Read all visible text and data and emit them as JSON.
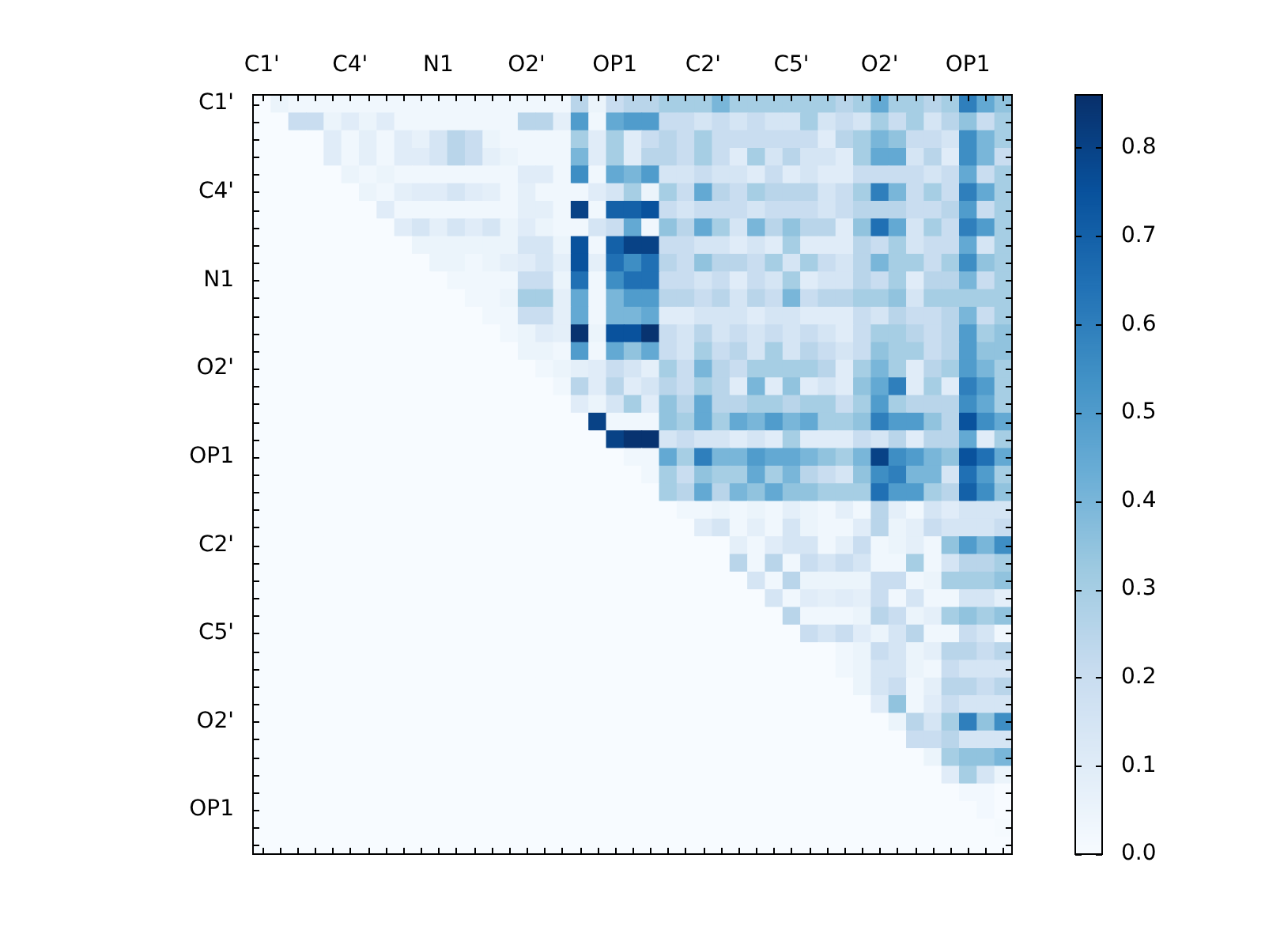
{
  "chart_data": {
    "type": "heatmap",
    "categories": [
      "C1'",
      null,
      null,
      null,
      null,
      "C4'",
      null,
      null,
      null,
      null,
      "N1",
      null,
      null,
      null,
      null,
      "O2'",
      null,
      null,
      null,
      null,
      "OP1",
      null,
      null,
      null,
      null,
      "C2'",
      null,
      null,
      null,
      null,
      "C5'",
      null,
      null,
      null,
      null,
      "O2'",
      null,
      null,
      null,
      null,
      "OP1",
      null,
      null
    ],
    "y_categories": [
      "C1'",
      null,
      null,
      null,
      null,
      "C4'",
      null,
      null,
      null,
      null,
      "N1",
      null,
      null,
      null,
      null,
      "O2'",
      null,
      null,
      null,
      null,
      "OP1",
      null,
      null,
      null,
      null,
      "C2'",
      null,
      null,
      null,
      null,
      "C5'",
      null,
      null,
      null,
      null,
      "O2'",
      null,
      null,
      null,
      null,
      "OP1",
      null,
      null
    ],
    "cells": [
      [
        0,
        0.05,
        0.03,
        0.03,
        0.03,
        0.03,
        0.03,
        0.03,
        0.03,
        0.03,
        0.03,
        0.03,
        0.03,
        0.03,
        0.03,
        0.03,
        0.03,
        0.03,
        0.25,
        0.05,
        0.2,
        0.25,
        0.25,
        0.3,
        0.3,
        0.3,
        0.4,
        0.3,
        0.3,
        0.3,
        0.3,
        0.3,
        0.3,
        0.25,
        0.3,
        0.45,
        0.3,
        0.3,
        0.25,
        0.3,
        0.6,
        0.45,
        0.35
      ],
      [
        0,
        0,
        0.2,
        0.2,
        0.05,
        0.1,
        0.05,
        0.1,
        0.03,
        0.03,
        0.03,
        0.03,
        0.03,
        0.03,
        0.03,
        0.25,
        0.25,
        0.08,
        0.5,
        0.03,
        0.45,
        0.5,
        0.5,
        0.2,
        0.2,
        0.15,
        0.2,
        0.15,
        0.2,
        0.15,
        0.15,
        0.3,
        0.15,
        0.2,
        0.15,
        0.3,
        0.2,
        0.3,
        0.15,
        0.25,
        0.35,
        0.2,
        0.3
      ],
      [
        0,
        0,
        0,
        0,
        0.1,
        0.03,
        0.08,
        0.03,
        0.1,
        0.07,
        0.15,
        0.25,
        0.2,
        0.05,
        0.03,
        0.03,
        0.03,
        0.03,
        0.3,
        0.1,
        0.3,
        0.1,
        0.2,
        0.25,
        0.2,
        0.3,
        0.2,
        0.2,
        0.2,
        0.2,
        0.2,
        0.2,
        0.1,
        0.25,
        0.3,
        0.4,
        0.35,
        0.2,
        0.2,
        0.15,
        0.55,
        0.4,
        0.3
      ],
      [
        0,
        0,
        0,
        0,
        0.1,
        0.03,
        0.08,
        0.03,
        0.1,
        0.1,
        0.15,
        0.25,
        0.2,
        0.08,
        0.05,
        0.03,
        0.03,
        0.03,
        0.4,
        0.1,
        0.3,
        0.1,
        0.25,
        0.25,
        0.2,
        0.3,
        0.2,
        0.1,
        0.3,
        0.15,
        0.25,
        0.15,
        0.15,
        0.1,
        0.3,
        0.45,
        0.45,
        0.15,
        0.25,
        0.1,
        0.55,
        0.4,
        0.2
      ],
      [
        0,
        0,
        0,
        0,
        0,
        0.05,
        0.03,
        0.05,
        0.03,
        0.03,
        0.03,
        0.03,
        0.03,
        0.03,
        0.03,
        0.1,
        0.1,
        0.03,
        0.55,
        0.03,
        0.45,
        0.4,
        0.5,
        0.15,
        0.15,
        0.2,
        0.15,
        0.15,
        0.1,
        0.2,
        0.1,
        0.15,
        0.1,
        0.1,
        0.2,
        0.2,
        0.2,
        0.2,
        0.15,
        0.2,
        0.45,
        0.2,
        0.3
      ],
      [
        0,
        0,
        0,
        0,
        0,
        0,
        0.05,
        0.03,
        0.08,
        0.1,
        0.1,
        0.15,
        0.1,
        0.08,
        0.03,
        0.08,
        0.03,
        0.03,
        0.03,
        0.1,
        0.15,
        0.3,
        0.05,
        0.3,
        0.2,
        0.45,
        0.25,
        0.2,
        0.3,
        0.25,
        0.25,
        0.25,
        0.15,
        0.2,
        0.3,
        0.6,
        0.4,
        0.2,
        0.3,
        0.2,
        0.6,
        0.45,
        0.3
      ],
      [
        0,
        0,
        0,
        0,
        0,
        0,
        0,
        0.1,
        0.03,
        0.03,
        0.03,
        0.03,
        0.03,
        0.03,
        0.03,
        0.08,
        0.08,
        0.03,
        0.8,
        0.03,
        0.7,
        0.7,
        0.75,
        0.2,
        0.15,
        0.2,
        0.2,
        0.2,
        0.15,
        0.2,
        0.2,
        0.2,
        0.15,
        0.2,
        0.25,
        0.25,
        0.25,
        0.2,
        0.2,
        0.25,
        0.5,
        0.2,
        0.3
      ],
      [
        0,
        0,
        0,
        0,
        0,
        0,
        0,
        0,
        0.1,
        0.15,
        0.08,
        0.15,
        0.1,
        0.15,
        0.05,
        0.1,
        0.05,
        0.03,
        0.03,
        0.15,
        0.2,
        0.45,
        0.03,
        0.35,
        0.25,
        0.45,
        0.3,
        0.15,
        0.4,
        0.25,
        0.35,
        0.25,
        0.25,
        0.1,
        0.35,
        0.65,
        0.45,
        0.15,
        0.3,
        0.2,
        0.6,
        0.5,
        0.3
      ],
      [
        0,
        0,
        0,
        0,
        0,
        0,
        0,
        0,
        0,
        0.05,
        0.05,
        0.05,
        0.05,
        0.05,
        0.05,
        0.15,
        0.15,
        0.05,
        0.75,
        0.03,
        0.7,
        0.8,
        0.8,
        0.2,
        0.2,
        0.15,
        0.15,
        0.1,
        0.15,
        0.1,
        0.3,
        0.1,
        0.1,
        0.1,
        0.25,
        0.2,
        0.3,
        0.15,
        0.2,
        0.2,
        0.45,
        0.15,
        0.3
      ],
      [
        0,
        0,
        0,
        0,
        0,
        0,
        0,
        0,
        0,
        0,
        0.05,
        0.05,
        0.03,
        0.05,
        0.08,
        0.1,
        0.15,
        0.08,
        0.75,
        0.08,
        0.65,
        0.55,
        0.65,
        0.25,
        0.2,
        0.35,
        0.25,
        0.25,
        0.2,
        0.3,
        0.15,
        0.3,
        0.2,
        0.15,
        0.25,
        0.4,
        0.3,
        0.3,
        0.2,
        0.3,
        0.55,
        0.35,
        0.3
      ],
      [
        0,
        0,
        0,
        0,
        0,
        0,
        0,
        0,
        0,
        0,
        0,
        0.03,
        0.03,
        0.03,
        0.03,
        0.2,
        0.2,
        0.05,
        0.65,
        0.03,
        0.55,
        0.65,
        0.65,
        0.2,
        0.2,
        0.15,
        0.2,
        0.1,
        0.2,
        0.15,
        0.3,
        0.1,
        0.15,
        0.15,
        0.25,
        0.2,
        0.3,
        0.1,
        0.25,
        0.25,
        0.4,
        0.2,
        0.3
      ],
      [
        0,
        0,
        0,
        0,
        0,
        0,
        0,
        0,
        0,
        0,
        0,
        0,
        0.03,
        0.03,
        0.05,
        0.3,
        0.3,
        0.08,
        0.45,
        0.03,
        0.4,
        0.5,
        0.5,
        0.25,
        0.25,
        0.2,
        0.25,
        0.15,
        0.25,
        0.2,
        0.4,
        0.2,
        0.25,
        0.25,
        0.3,
        0.3,
        0.35,
        0.15,
        0.3,
        0.3,
        0.3,
        0.3,
        0.3
      ],
      [
        0,
        0,
        0,
        0,
        0,
        0,
        0,
        0,
        0,
        0,
        0,
        0,
        0,
        0.03,
        0.03,
        0.2,
        0.2,
        0.08,
        0.45,
        0.03,
        0.4,
        0.4,
        0.45,
        0.1,
        0.1,
        0.15,
        0.15,
        0.15,
        0.1,
        0.15,
        0.15,
        0.1,
        0.1,
        0.1,
        0.2,
        0.15,
        0.25,
        0.2,
        0.2,
        0.25,
        0.4,
        0.2,
        0.3
      ],
      [
        0,
        0,
        0,
        0,
        0,
        0,
        0,
        0,
        0,
        0,
        0,
        0,
        0,
        0,
        0.03,
        0.05,
        0.1,
        0.08,
        0.85,
        0.05,
        0.75,
        0.75,
        0.85,
        0.2,
        0.15,
        0.25,
        0.15,
        0.2,
        0.15,
        0.2,
        0.15,
        0.2,
        0.15,
        0.1,
        0.2,
        0.3,
        0.3,
        0.25,
        0.2,
        0.25,
        0.5,
        0.3,
        0.35
      ],
      [
        0,
        0,
        0,
        0,
        0,
        0,
        0,
        0,
        0,
        0,
        0,
        0,
        0,
        0,
        0,
        0.05,
        0.05,
        0.03,
        0.5,
        0.03,
        0.45,
        0.35,
        0.45,
        0.2,
        0.15,
        0.3,
        0.2,
        0.25,
        0.15,
        0.3,
        0.15,
        0.25,
        0.2,
        0.15,
        0.2,
        0.35,
        0.3,
        0.3,
        0.2,
        0.25,
        0.5,
        0.35,
        0.35
      ],
      [
        0,
        0,
        0,
        0,
        0,
        0,
        0,
        0,
        0,
        0,
        0,
        0,
        0,
        0,
        0,
        0,
        0.03,
        0.05,
        0.08,
        0.1,
        0.2,
        0.15,
        0.08,
        0.3,
        0.2,
        0.4,
        0.25,
        0.2,
        0.3,
        0.3,
        0.3,
        0.3,
        0.25,
        0.1,
        0.3,
        0.4,
        0.3,
        0.1,
        0.25,
        0.3,
        0.5,
        0.4,
        0.3
      ],
      [
        0,
        0,
        0,
        0,
        0,
        0,
        0,
        0,
        0,
        0,
        0,
        0,
        0,
        0,
        0,
        0,
        0,
        0.03,
        0.25,
        0.1,
        0.25,
        0.1,
        0.15,
        0.25,
        0.2,
        0.3,
        0.25,
        0.1,
        0.4,
        0.1,
        0.35,
        0.1,
        0.15,
        0.1,
        0.35,
        0.45,
        0.6,
        0.1,
        0.3,
        0.1,
        0.6,
        0.5,
        0.3
      ],
      [
        0,
        0,
        0,
        0,
        0,
        0,
        0,
        0,
        0,
        0,
        0,
        0,
        0,
        0,
        0,
        0,
        0,
        0,
        0.1,
        0.05,
        0.15,
        0.3,
        0.1,
        0.35,
        0.25,
        0.45,
        0.25,
        0.25,
        0.3,
        0.3,
        0.25,
        0.3,
        0.3,
        0.2,
        0.3,
        0.5,
        0.3,
        0.25,
        0.25,
        0.25,
        0.55,
        0.45,
        0.3
      ],
      [
        0,
        0,
        0,
        0,
        0,
        0,
        0,
        0,
        0,
        0,
        0,
        0,
        0,
        0,
        0,
        0,
        0,
        0,
        0,
        0.8,
        0.03,
        0.03,
        0.03,
        0.35,
        0.3,
        0.45,
        0.3,
        0.45,
        0.4,
        0.5,
        0.4,
        0.45,
        0.3,
        0.3,
        0.35,
        0.6,
        0.5,
        0.5,
        0.35,
        0.25,
        0.75,
        0.55,
        0.45
      ],
      [
        0,
        0,
        0,
        0,
        0,
        0,
        0,
        0,
        0,
        0,
        0,
        0,
        0,
        0,
        0,
        0,
        0,
        0,
        0,
        0,
        0.8,
        0.85,
        0.85,
        0.15,
        0.2,
        0.15,
        0.15,
        0.1,
        0.15,
        0.1,
        0.3,
        0.1,
        0.1,
        0.1,
        0.2,
        0.15,
        0.25,
        0.1,
        0.25,
        0.25,
        0.45,
        0.1,
        0.3
      ],
      [
        0,
        0,
        0,
        0,
        0,
        0,
        0,
        0,
        0,
        0,
        0,
        0,
        0,
        0,
        0,
        0,
        0,
        0,
        0,
        0,
        0,
        0.03,
        0.03,
        0.45,
        0.3,
        0.6,
        0.4,
        0.4,
        0.5,
        0.45,
        0.45,
        0.4,
        0.35,
        0.3,
        0.4,
        0.8,
        0.55,
        0.5,
        0.4,
        0.35,
        0.75,
        0.65,
        0.45
      ],
      [
        0,
        0,
        0,
        0,
        0,
        0,
        0,
        0,
        0,
        0,
        0,
        0,
        0,
        0,
        0,
        0,
        0,
        0,
        0,
        0,
        0,
        0,
        0.03,
        0.3,
        0.2,
        0.35,
        0.3,
        0.3,
        0.45,
        0.3,
        0.4,
        0.25,
        0.2,
        0.15,
        0.35,
        0.55,
        0.6,
        0.4,
        0.4,
        0.15,
        0.65,
        0.5,
        0.3
      ],
      [
        0,
        0,
        0,
        0,
        0,
        0,
        0,
        0,
        0,
        0,
        0,
        0,
        0,
        0,
        0,
        0,
        0,
        0,
        0,
        0,
        0,
        0,
        0,
        0.3,
        0.25,
        0.45,
        0.25,
        0.4,
        0.35,
        0.45,
        0.35,
        0.35,
        0.3,
        0.3,
        0.3,
        0.65,
        0.5,
        0.5,
        0.3,
        0.25,
        0.7,
        0.55,
        0.35
      ],
      [
        0,
        0,
        0,
        0,
        0,
        0,
        0,
        0,
        0,
        0,
        0,
        0,
        0,
        0,
        0,
        0,
        0,
        0,
        0,
        0,
        0,
        0,
        0,
        0,
        0.03,
        0.03,
        0.05,
        0.03,
        0.05,
        0.03,
        0.08,
        0.05,
        0.03,
        0.08,
        0.03,
        0.25,
        0.08,
        0.03,
        0.15,
        0.1,
        0.15,
        0.15,
        0.15
      ],
      [
        0,
        0,
        0,
        0,
        0,
        0,
        0,
        0,
        0,
        0,
        0,
        0,
        0,
        0,
        0,
        0,
        0,
        0,
        0,
        0,
        0,
        0,
        0,
        0,
        0,
        0.1,
        0.15,
        0.03,
        0.08,
        0.03,
        0.15,
        0.05,
        0.03,
        0.03,
        0.1,
        0.25,
        0.05,
        0.08,
        0.2,
        0.15,
        0.15,
        0.15,
        0.2
      ],
      [
        0,
        0,
        0,
        0,
        0,
        0,
        0,
        0,
        0,
        0,
        0,
        0,
        0,
        0,
        0,
        0,
        0,
        0,
        0,
        0,
        0,
        0,
        0,
        0,
        0,
        0,
        0,
        0.08,
        0.03,
        0.1,
        0.15,
        0.15,
        0.03,
        0.08,
        0.2,
        0.03,
        0.05,
        0.08,
        0.03,
        0.35,
        0.5,
        0.4,
        0.55
      ],
      [
        0,
        0,
        0,
        0,
        0,
        0,
        0,
        0,
        0,
        0,
        0,
        0,
        0,
        0,
        0,
        0,
        0,
        0,
        0,
        0,
        0,
        0,
        0,
        0,
        0,
        0,
        0,
        0.25,
        0.03,
        0.25,
        0.03,
        0.2,
        0.15,
        0.2,
        0.15,
        0.03,
        0.03,
        0.3,
        0.03,
        0.15,
        0.25,
        0.25,
        0.3
      ],
      [
        0,
        0,
        0,
        0,
        0,
        0,
        0,
        0,
        0,
        0,
        0,
        0,
        0,
        0,
        0,
        0,
        0,
        0,
        0,
        0,
        0,
        0,
        0,
        0,
        0,
        0,
        0,
        0,
        0.15,
        0.03,
        0.25,
        0.05,
        0.05,
        0.05,
        0.05,
        0.2,
        0.2,
        0.03,
        0.05,
        0.3,
        0.3,
        0.3,
        0.35
      ],
      [
        0,
        0,
        0,
        0,
        0,
        0,
        0,
        0,
        0,
        0,
        0,
        0,
        0,
        0,
        0,
        0,
        0,
        0,
        0,
        0,
        0,
        0,
        0,
        0,
        0,
        0,
        0,
        0,
        0,
        0.15,
        0.03,
        0.1,
        0.08,
        0.1,
        0.08,
        0.2,
        0.03,
        0.15,
        0.03,
        0.03,
        0.15,
        0.15,
        0.08
      ],
      [
        0,
        0,
        0,
        0,
        0,
        0,
        0,
        0,
        0,
        0,
        0,
        0,
        0,
        0,
        0,
        0,
        0,
        0,
        0,
        0,
        0,
        0,
        0,
        0,
        0,
        0,
        0,
        0,
        0,
        0,
        0.25,
        0.03,
        0.03,
        0.03,
        0.05,
        0.25,
        0.2,
        0.05,
        0.08,
        0.3,
        0.35,
        0.3,
        0.35
      ],
      [
        0,
        0,
        0,
        0,
        0,
        0,
        0,
        0,
        0,
        0,
        0,
        0,
        0,
        0,
        0,
        0,
        0,
        0,
        0,
        0,
        0,
        0,
        0,
        0,
        0,
        0,
        0,
        0,
        0,
        0,
        0,
        0.2,
        0.15,
        0.2,
        0.1,
        0.05,
        0.15,
        0.25,
        0.03,
        0.03,
        0.2,
        0.15,
        0.03
      ],
      [
        0,
        0,
        0,
        0,
        0,
        0,
        0,
        0,
        0,
        0,
        0,
        0,
        0,
        0,
        0,
        0,
        0,
        0,
        0,
        0,
        0,
        0,
        0,
        0,
        0,
        0,
        0,
        0,
        0,
        0,
        0,
        0,
        0,
        0.03,
        0.05,
        0.2,
        0.15,
        0.05,
        0.08,
        0.25,
        0.25,
        0.2,
        0.25
      ],
      [
        0,
        0,
        0,
        0,
        0,
        0,
        0,
        0,
        0,
        0,
        0,
        0,
        0,
        0,
        0,
        0,
        0,
        0,
        0,
        0,
        0,
        0,
        0,
        0,
        0,
        0,
        0,
        0,
        0,
        0,
        0,
        0,
        0,
        0.03,
        0.05,
        0.15,
        0.15,
        0.05,
        0.03,
        0.2,
        0.15,
        0.15,
        0.15
      ],
      [
        0,
        0,
        0,
        0,
        0,
        0,
        0,
        0,
        0,
        0,
        0,
        0,
        0,
        0,
        0,
        0,
        0,
        0,
        0,
        0,
        0,
        0,
        0,
        0,
        0,
        0,
        0,
        0,
        0,
        0,
        0,
        0,
        0,
        0,
        0.05,
        0.15,
        0.2,
        0.03,
        0.08,
        0.25,
        0.25,
        0.2,
        0.25
      ],
      [
        0,
        0,
        0,
        0,
        0,
        0,
        0,
        0,
        0,
        0,
        0,
        0,
        0,
        0,
        0,
        0,
        0,
        0,
        0,
        0,
        0,
        0,
        0,
        0,
        0,
        0,
        0,
        0,
        0,
        0,
        0,
        0,
        0,
        0,
        0,
        0.1,
        0.35,
        0.03,
        0.1,
        0.2,
        0.15,
        0.15,
        0.15
      ],
      [
        0,
        0,
        0,
        0,
        0,
        0,
        0,
        0,
        0,
        0,
        0,
        0,
        0,
        0,
        0,
        0,
        0,
        0,
        0,
        0,
        0,
        0,
        0,
        0,
        0,
        0,
        0,
        0,
        0,
        0,
        0,
        0,
        0,
        0,
        0,
        0,
        0.05,
        0.25,
        0.15,
        0.3,
        0.6,
        0.35,
        0.55
      ],
      [
        0,
        0,
        0,
        0,
        0,
        0,
        0,
        0,
        0,
        0,
        0,
        0,
        0,
        0,
        0,
        0,
        0,
        0,
        0,
        0,
        0,
        0,
        0,
        0,
        0,
        0,
        0,
        0,
        0,
        0,
        0,
        0,
        0,
        0,
        0,
        0,
        0,
        0.2,
        0.2,
        0.25,
        0.15,
        0.15,
        0.15
      ],
      [
        0,
        0,
        0,
        0,
        0,
        0,
        0,
        0,
        0,
        0,
        0,
        0,
        0,
        0,
        0,
        0,
        0,
        0,
        0,
        0,
        0,
        0,
        0,
        0,
        0,
        0,
        0,
        0,
        0,
        0,
        0,
        0,
        0,
        0,
        0,
        0,
        0,
        0,
        0.05,
        0.3,
        0.35,
        0.35,
        0.4
      ],
      [
        0,
        0,
        0,
        0,
        0,
        0,
        0,
        0,
        0,
        0,
        0,
        0,
        0,
        0,
        0,
        0,
        0,
        0,
        0,
        0,
        0,
        0,
        0,
        0,
        0,
        0,
        0,
        0,
        0,
        0,
        0,
        0,
        0,
        0,
        0,
        0,
        0,
        0,
        0,
        0.1,
        0.3,
        0.15,
        0.05
      ],
      [
        0,
        0,
        0,
        0,
        0,
        0,
        0,
        0,
        0,
        0,
        0,
        0,
        0,
        0,
        0,
        0,
        0,
        0,
        0,
        0,
        0,
        0,
        0,
        0,
        0,
        0,
        0,
        0,
        0,
        0,
        0,
        0,
        0,
        0,
        0,
        0,
        0,
        0,
        0,
        0,
        0.02,
        0.02,
        0
      ],
      [
        0,
        0,
        0,
        0,
        0,
        0,
        0,
        0,
        0,
        0,
        0,
        0,
        0,
        0,
        0,
        0,
        0,
        0,
        0,
        0,
        0,
        0,
        0,
        0,
        0,
        0,
        0,
        0,
        0,
        0,
        0,
        0,
        0,
        0,
        0,
        0,
        0,
        0,
        0,
        0,
        0,
        0.02,
        0
      ],
      [
        0,
        0,
        0,
        0,
        0,
        0,
        0,
        0,
        0,
        0,
        0,
        0,
        0,
        0,
        0,
        0,
        0,
        0,
        0,
        0,
        0,
        0,
        0,
        0,
        0,
        0,
        0,
        0,
        0,
        0,
        0,
        0,
        0,
        0,
        0,
        0,
        0,
        0,
        0,
        0,
        0,
        0,
        0.01
      ],
      [
        0,
        0,
        0,
        0,
        0,
        0,
        0,
        0,
        0,
        0,
        0,
        0,
        0,
        0,
        0,
        0,
        0,
        0,
        0,
        0,
        0,
        0,
        0,
        0,
        0,
        0,
        0,
        0,
        0,
        0,
        0,
        0,
        0,
        0,
        0,
        0,
        0,
        0,
        0,
        0,
        0,
        0,
        0
      ]
    ],
    "clim": [
      0,
      0.86
    ],
    "cticks": [
      {
        "value": 0,
        "label": "0.0"
      },
      0.1,
      0.2,
      0.3,
      0.4,
      0.5,
      0.6,
      0.7,
      0.8
    ]
  }
}
